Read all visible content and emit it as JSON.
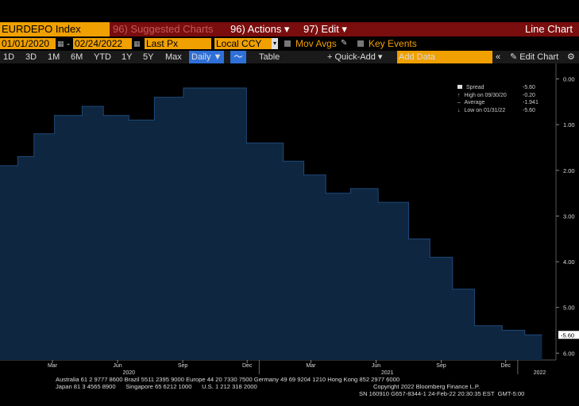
{
  "header": {
    "ticker": "EURDEPO Index",
    "suggested": "96) Suggested Charts",
    "actions": "96) Actions ▾",
    "edit": "97) Edit ▾",
    "title": "Line Chart"
  },
  "controls": {
    "start_date": "01/01/2020",
    "end_date": "02/24/2022",
    "field": "Last Px",
    "currency": "Local CCY",
    "mov_avgs": "Mov Avgs",
    "key_events": "Key Events"
  },
  "toolbar": {
    "ranges": [
      "1D",
      "3D",
      "1M",
      "6M",
      "YTD",
      "1Y",
      "5Y",
      "Max"
    ],
    "frequency": "Daily ▼",
    "table": "Table",
    "quick_add": "+ Quick-Add ▾",
    "add_data_placeholder": "Add Data",
    "edit_chart": "✎ Edit Chart"
  },
  "legend": {
    "rows": [
      {
        "label": "Spread",
        "value": "-5.60"
      },
      {
        "label": "High on 09/30/20",
        "value": "-0.20"
      },
      {
        "label": "Average",
        "value": "-1.941"
      },
      {
        "label": "Low on 01/31/22",
        "value": "-5.60"
      }
    ]
  },
  "chart_data": {
    "type": "area",
    "x_start": "2020-01-01",
    "x_end": "2022-02-24",
    "series": [
      {
        "values": [
          {
            "x": "2020-01-01",
            "y": -1.9
          },
          {
            "x": "2020-01-26",
            "y": -1.7
          },
          {
            "x": "2020-02-18",
            "y": -1.2
          },
          {
            "x": "2020-03-18",
            "y": -0.8
          },
          {
            "x": "2020-04-26",
            "y": -0.6
          },
          {
            "x": "2020-05-26",
            "y": -0.8
          },
          {
            "x": "2020-07-01",
            "y": -0.9
          },
          {
            "x": "2020-08-06",
            "y": -0.4
          },
          {
            "x": "2020-09-16",
            "y": -0.2
          },
          {
            "x": "2020-12-14",
            "y": -1.4
          },
          {
            "x": "2021-02-04",
            "y": -1.8
          },
          {
            "x": "2021-03-05",
            "y": -2.1
          },
          {
            "x": "2021-04-05",
            "y": -2.5
          },
          {
            "x": "2021-05-10",
            "y": -2.4
          },
          {
            "x": "2021-06-18",
            "y": -2.7
          },
          {
            "x": "2021-07-31",
            "y": -3.5
          },
          {
            "x": "2021-08-30",
            "y": -3.9
          },
          {
            "x": "2021-10-01",
            "y": -4.6
          },
          {
            "x": "2021-11-01",
            "y": -5.4
          },
          {
            "x": "2021-12-10",
            "y": -5.5
          },
          {
            "x": "2022-01-11",
            "y": -5.6
          },
          {
            "x": "2022-01-31",
            "y": -5.6
          }
        ]
      }
    ],
    "ylim": [
      -6.15,
      0.2
    ],
    "yticks": [
      "0.00",
      "1.00",
      "2.00",
      "3.00",
      "4.00",
      "5.00",
      "6.00"
    ],
    "ytick_values": [
      0,
      -1,
      -2,
      -3,
      -4,
      -5,
      -6
    ],
    "last_value_label": "-5.60",
    "month_ticks": [
      {
        "label": "Mar",
        "x": "2020-03-15"
      },
      {
        "label": "Jun",
        "x": "2020-06-15"
      },
      {
        "label": "Sep",
        "x": "2020-09-15"
      },
      {
        "label": "Dec",
        "x": "2020-12-15"
      },
      {
        "label": "Mar",
        "x": "2021-03-15"
      },
      {
        "label": "Jun",
        "x": "2021-06-15"
      },
      {
        "label": "Sep",
        "x": "2021-09-15"
      },
      {
        "label": "Dec",
        "x": "2021-12-15"
      }
    ],
    "year_ticks": [
      {
        "label": "2020",
        "x": "2020-07-01"
      },
      {
        "label": "2021",
        "x": "2021-07-01"
      },
      {
        "label": "2022",
        "x": "2022-02-01"
      }
    ],
    "fill_color": "#0e2640",
    "line_color": "#1e4a7a"
  },
  "footer": {
    "line1": "Australia 61 2 9777 8600 Brazil 5511 2395 9000 Europe 44 20 7330 7500 Germany 49 69 9204 1210 Hong Kong 852 2977 6000",
    "line2a": "Japan 81 3 4565 8900      Singapore 65 6212 1000      U.S. 1 212 318 2000",
    "line2b": "Copyright 2022 Bloomberg Finance L.P.",
    "line3": "SN 160910 G657-8344-1 24-Feb-22 20:30:35 EST  GMT-5:00"
  }
}
